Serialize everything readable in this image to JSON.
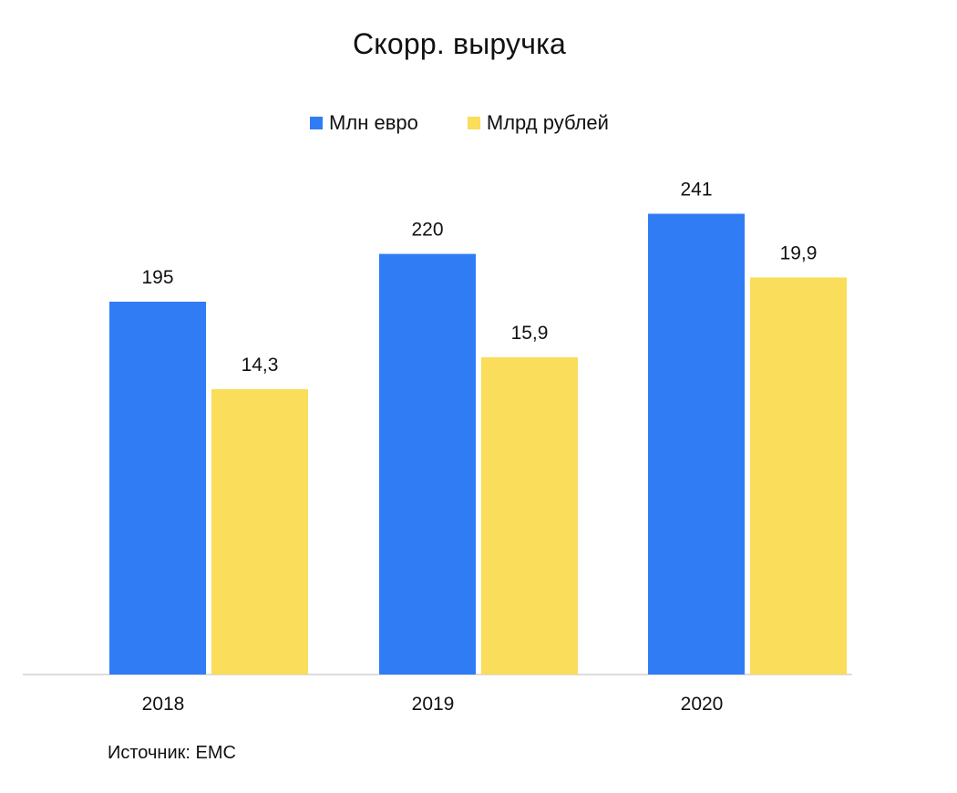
{
  "chart_data": {
    "type": "bar",
    "title": "Скорр. выручка",
    "categories": [
      "2018",
      "2019",
      "2020"
    ],
    "series": [
      {
        "name": "Млн евро",
        "values": [
          195,
          220,
          241
        ],
        "labels": [
          "195",
          "220",
          "241"
        ],
        "color": "#307CF4"
      },
      {
        "name": "Млрд рублей",
        "values": [
          14.3,
          15.9,
          19.9
        ],
        "labels": [
          "14,3",
          "15,9",
          "19,9"
        ],
        "color": "#F9DD5B"
      }
    ],
    "legend_position": "top",
    "grid": false,
    "xlabel": "",
    "ylabel": ""
  },
  "source": "Источник: EMC"
}
